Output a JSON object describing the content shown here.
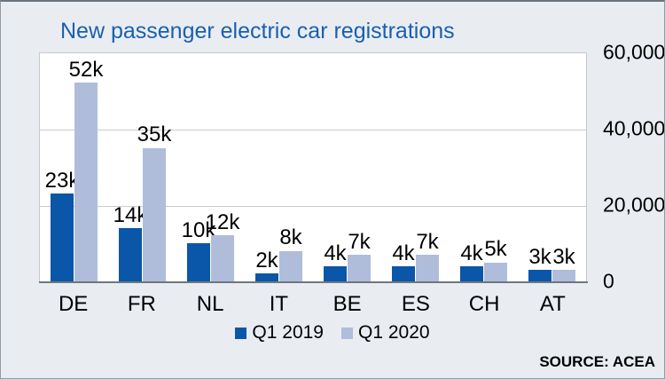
{
  "title": "New passenger electric car registrations",
  "source": "SOURCE: ACEA",
  "colors": {
    "background": "#e9edf2",
    "plot_background": "#ffffff",
    "title": "#1b5fae",
    "series_q1_2019": "#0a56a8",
    "series_q1_2020": "#afbdda",
    "gridline": "#c9ced3",
    "axis_line": "#6e777e",
    "text": "#000000"
  },
  "legend": [
    {
      "label": "Q1 2019",
      "color": "#0a56a8"
    },
    {
      "label": "Q1 2020",
      "color": "#afbdda"
    }
  ],
  "chart_data": {
    "type": "bar",
    "title": "New passenger electric car registrations",
    "categories": [
      "DE",
      "FR",
      "NL",
      "IT",
      "BE",
      "ES",
      "CH",
      "AT"
    ],
    "series": [
      {
        "name": "Q1 2019",
        "color": "#0a56a8",
        "values": [
          23000,
          14000,
          10000,
          2000,
          4000,
          4000,
          4000,
          3000
        ],
        "labels": [
          "23k",
          "14k",
          "10k",
          "2k",
          "4k",
          "4k",
          "4k",
          "3k"
        ]
      },
      {
        "name": "Q1 2020",
        "color": "#afbdda",
        "values": [
          52000,
          35000,
          12000,
          8000,
          7000,
          7000,
          5000,
          3000
        ],
        "labels": [
          "52k",
          "35k",
          "12k",
          "8k",
          "7k",
          "7k",
          "5k",
          "3k"
        ]
      }
    ],
    "xlabel": "",
    "ylabel": "",
    "ylim": [
      0,
      60000
    ],
    "yticks": [
      {
        "value": 0,
        "label": "0"
      },
      {
        "value": 20000,
        "label": "20,000"
      },
      {
        "value": 40000,
        "label": "40,000"
      },
      {
        "value": 60000,
        "label": "60,000"
      }
    ],
    "grid": true,
    "gridline_values": [
      20000,
      40000
    ],
    "legend_position": "bottom"
  }
}
